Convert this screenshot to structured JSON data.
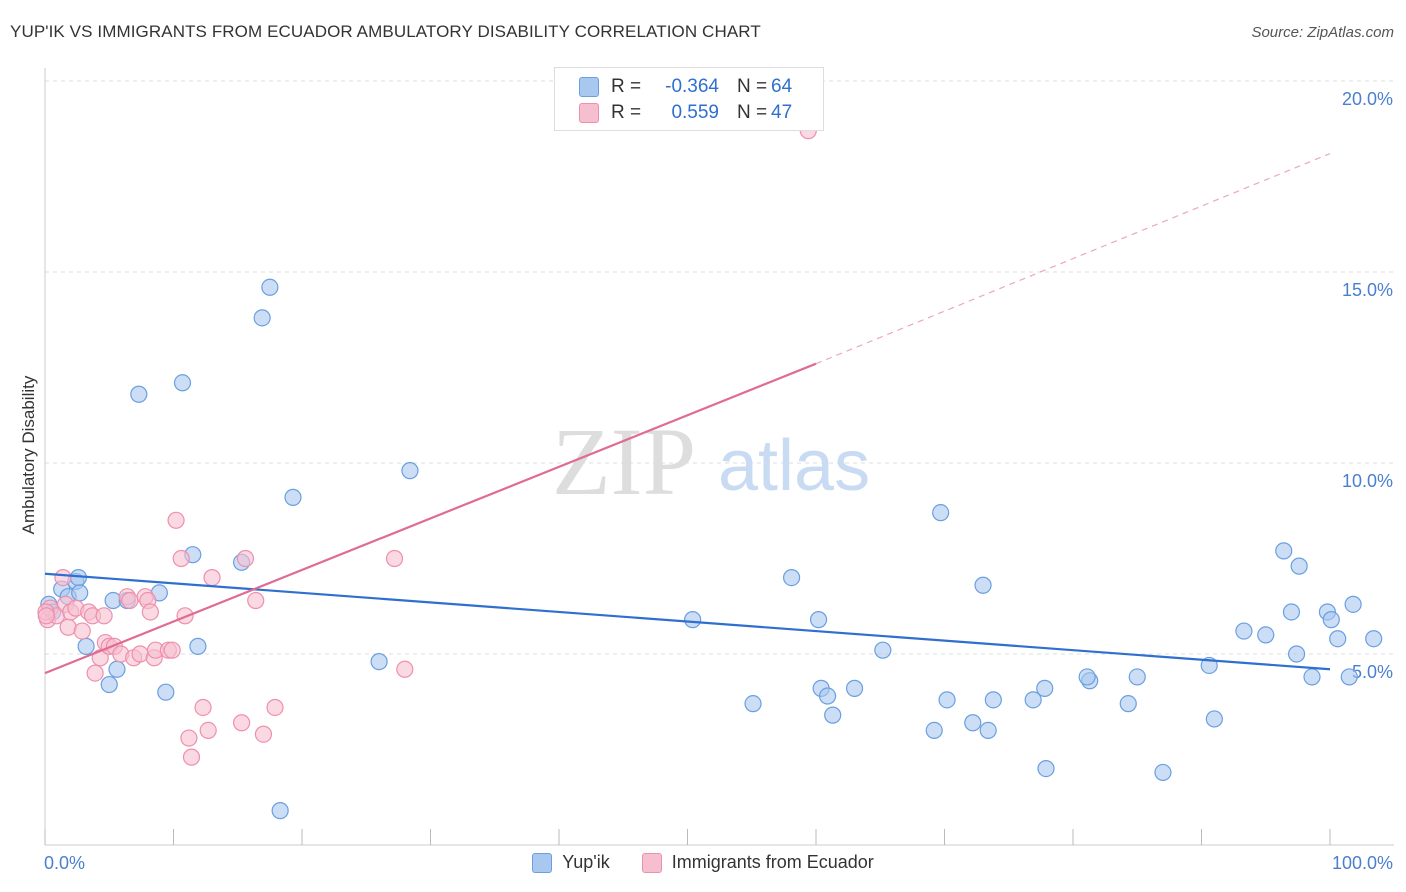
{
  "header": {
    "title": "YUP'IK VS IMMIGRANTS FROM ECUADOR AMBULATORY DISABILITY CORRELATION CHART",
    "source": "Source: ZipAtlas.com"
  },
  "watermark": {
    "zip": "ZIP",
    "atlas": "atlas"
  },
  "legend": {
    "rows": [
      {
        "r_label": "R =",
        "r_value": "-0.364",
        "n_label": "N =",
        "n_value": "64"
      },
      {
        "r_label": "R =",
        "r_value": "0.559",
        "n_label": "N =",
        "n_value": "47"
      }
    ]
  },
  "bottom_legend": {
    "series_a": "Yup'ik",
    "series_b": "Immigrants from Ecuador"
  },
  "colors": {
    "blue_fill": "#a9c8f0",
    "blue_stroke": "#6a9fe0",
    "blue_line": "#2f6fcf",
    "pink_fill": "#f6bfd0",
    "pink_stroke": "#ee8fae",
    "pink_line": "#e06b93",
    "grid": "#dddddd",
    "tick_text": "#4a7fd0"
  },
  "chart_data": {
    "type": "scatter",
    "title": "YUP'IK VS IMMIGRANTS FROM ECUADOR AMBULATORY DISABILITY CORRELATION CHART",
    "xlabel": "",
    "ylabel": "Ambulatory Disability",
    "xlim": [
      0,
      100
    ],
    "ylim": [
      0,
      20.5
    ],
    "x_tick_labels": [
      "0.0%",
      "100.0%"
    ],
    "y_ticks": [
      5,
      10,
      15,
      20
    ],
    "y_tick_labels": [
      "5.0%",
      "10.0%",
      "15.0%",
      "20.0%"
    ],
    "grid": true,
    "legend_position": "top-center",
    "series": [
      {
        "name": "Yup'ik",
        "color": "#a9c8f0",
        "points": [
          [
            0.3,
            6.3
          ],
          [
            0.6,
            6.1
          ],
          [
            1.3,
            6.7
          ],
          [
            1.8,
            6.5
          ],
          [
            2.4,
            6.9
          ],
          [
            2.6,
            7.0
          ],
          [
            2.7,
            6.6
          ],
          [
            3.2,
            5.2
          ],
          [
            5.0,
            4.2
          ],
          [
            5.3,
            6.4
          ],
          [
            5.6,
            4.6
          ],
          [
            6.4,
            6.4
          ],
          [
            7.3,
            11.8
          ],
          [
            8.9,
            6.6
          ],
          [
            9.4,
            4.0
          ],
          [
            10.7,
            12.1
          ],
          [
            11.5,
            7.6
          ],
          [
            11.9,
            5.2
          ],
          [
            15.3,
            7.4
          ],
          [
            16.9,
            13.8
          ],
          [
            17.5,
            14.6
          ],
          [
            18.3,
            0.9
          ],
          [
            19.3,
            9.1
          ],
          [
            26.0,
            4.8
          ],
          [
            28.4,
            9.8
          ],
          [
            50.4,
            5.9
          ],
          [
            55.1,
            3.7
          ],
          [
            58.1,
            7.0
          ],
          [
            60.2,
            5.9
          ],
          [
            60.4,
            4.1
          ],
          [
            60.9,
            3.9
          ],
          [
            61.3,
            3.4
          ],
          [
            63.0,
            4.1
          ],
          [
            65.2,
            5.1
          ],
          [
            69.2,
            3.0
          ],
          [
            69.7,
            8.7
          ],
          [
            70.2,
            3.8
          ],
          [
            72.2,
            3.2
          ],
          [
            73.0,
            6.8
          ],
          [
            73.4,
            3.0
          ],
          [
            73.8,
            3.8
          ],
          [
            76.9,
            3.8
          ],
          [
            77.9,
            2.0
          ],
          [
            77.8,
            4.1
          ],
          [
            81.3,
            4.3
          ],
          [
            81.1,
            4.4
          ],
          [
            84.3,
            3.7
          ],
          [
            85.0,
            4.4
          ],
          [
            87.0,
            1.9
          ],
          [
            90.6,
            4.7
          ],
          [
            91.0,
            3.3
          ],
          [
            93.3,
            5.6
          ],
          [
            95.0,
            5.5
          ],
          [
            96.4,
            7.7
          ],
          [
            97.0,
            6.1
          ],
          [
            97.4,
            5.0
          ],
          [
            97.6,
            7.3
          ],
          [
            98.6,
            4.4
          ],
          [
            99.8,
            6.1
          ],
          [
            100.1,
            5.9
          ],
          [
            100.6,
            5.4
          ],
          [
            101.5,
            4.4
          ],
          [
            101.8,
            6.3
          ],
          [
            103.4,
            5.4
          ]
        ],
        "trend": {
          "x0": 0,
          "y0": 7.1,
          "x1": 100,
          "y1": 4.6
        }
      },
      {
        "name": "Immigrants from Ecuador",
        "color": "#f6bfd0",
        "points": [
          [
            0.2,
            5.9
          ],
          [
            0.4,
            6.2
          ],
          [
            0.9,
            6.0
          ],
          [
            1.4,
            7.0
          ],
          [
            1.6,
            6.3
          ],
          [
            1.8,
            5.7
          ],
          [
            2.0,
            6.1
          ],
          [
            2.4,
            6.2
          ],
          [
            2.9,
            5.6
          ],
          [
            3.4,
            6.1
          ],
          [
            3.7,
            6.0
          ],
          [
            3.9,
            4.5
          ],
          [
            4.3,
            4.9
          ],
          [
            4.6,
            6.0
          ],
          [
            4.7,
            5.3
          ],
          [
            5.0,
            5.2
          ],
          [
            5.4,
            5.2
          ],
          [
            5.9,
            5.0
          ],
          [
            6.4,
            6.5
          ],
          [
            6.6,
            6.4
          ],
          [
            6.9,
            4.9
          ],
          [
            7.4,
            5.0
          ],
          [
            7.8,
            6.5
          ],
          [
            8.0,
            6.4
          ],
          [
            8.2,
            6.1
          ],
          [
            8.5,
            4.9
          ],
          [
            8.6,
            5.1
          ],
          [
            9.6,
            5.1
          ],
          [
            9.9,
            5.1
          ],
          [
            10.2,
            8.5
          ],
          [
            10.6,
            7.5
          ],
          [
            10.9,
            6.0
          ],
          [
            11.2,
            2.8
          ],
          [
            11.4,
            2.3
          ],
          [
            12.3,
            3.6
          ],
          [
            12.7,
            3.0
          ],
          [
            13.0,
            7.0
          ],
          [
            15.3,
            3.2
          ],
          [
            15.6,
            7.5
          ],
          [
            16.4,
            6.4
          ],
          [
            17.0,
            2.9
          ],
          [
            17.9,
            3.6
          ],
          [
            27.2,
            7.5
          ],
          [
            28.0,
            4.6
          ],
          [
            59.4,
            18.7
          ],
          [
            -0.1,
            6.1
          ],
          [
            0.1,
            6.0
          ]
        ],
        "trend": {
          "x0": 0,
          "y0": 4.5,
          "x1": 60,
          "y1": 12.6,
          "dash_x1": 100,
          "dash_y1": 18.1
        }
      }
    ]
  }
}
